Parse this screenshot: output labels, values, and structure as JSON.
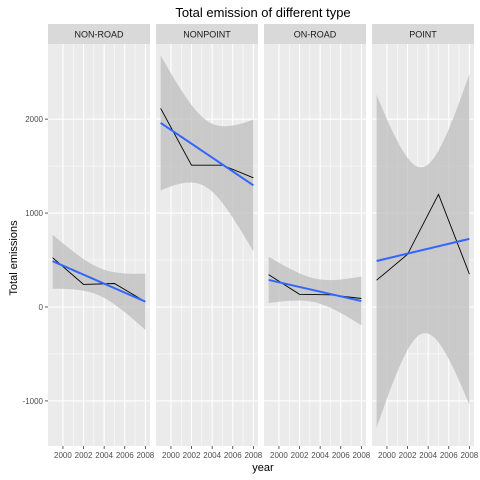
{
  "chart_data": {
    "type": "line",
    "title": "Total emission of different type",
    "xlabel": "year",
    "ylabel": "Total emissions",
    "x": [
      1999,
      2002,
      2005,
      2008
    ],
    "x_ticks": [
      2000,
      2002,
      2004,
      2006,
      2008
    ],
    "y_ticks": [
      -1000,
      0,
      1000,
      2000
    ],
    "ylim": [
      -1480,
      2800
    ],
    "xlim": [
      1998.55,
      2008.45
    ],
    "grid": true,
    "facets": [
      {
        "name": "NON-ROAD",
        "values": [
          525,
          240,
          250,
          55
        ],
        "fit": [
          488,
          57
        ],
        "band_upper": [
          770,
          355
        ],
        "band_lower": [
          195,
          -245
        ]
      },
      {
        "name": "NONPOINT",
        "values": [
          2115,
          1510,
          1510,
          1375
        ],
        "fit": [
          1960,
          1295
        ],
        "band_upper": [
          2680,
          1995
        ],
        "band_lower": [
          1240,
          590
        ]
      },
      {
        "name": "ON-ROAD",
        "values": [
          345,
          135,
          130,
          90
        ],
        "fit": [
          288,
          63
        ],
        "band_upper": [
          535,
          325
        ],
        "band_lower": [
          42,
          -195
        ]
      },
      {
        "name": "POINT",
        "values": [
          285,
          560,
          1200,
          350
        ],
        "fit": [
          490,
          725
        ],
        "band_upper": [
          2260,
          2480
        ],
        "band_lower": [
          -1290,
          -1040
        ]
      }
    ],
    "colors": {
      "panel_bg": "#ebebeb",
      "strip_bg": "#d9d9d9",
      "grid": "#ffffff",
      "raw_line": "#000000",
      "fit_line": "#3366ff",
      "band": "#bdbdbd"
    }
  }
}
